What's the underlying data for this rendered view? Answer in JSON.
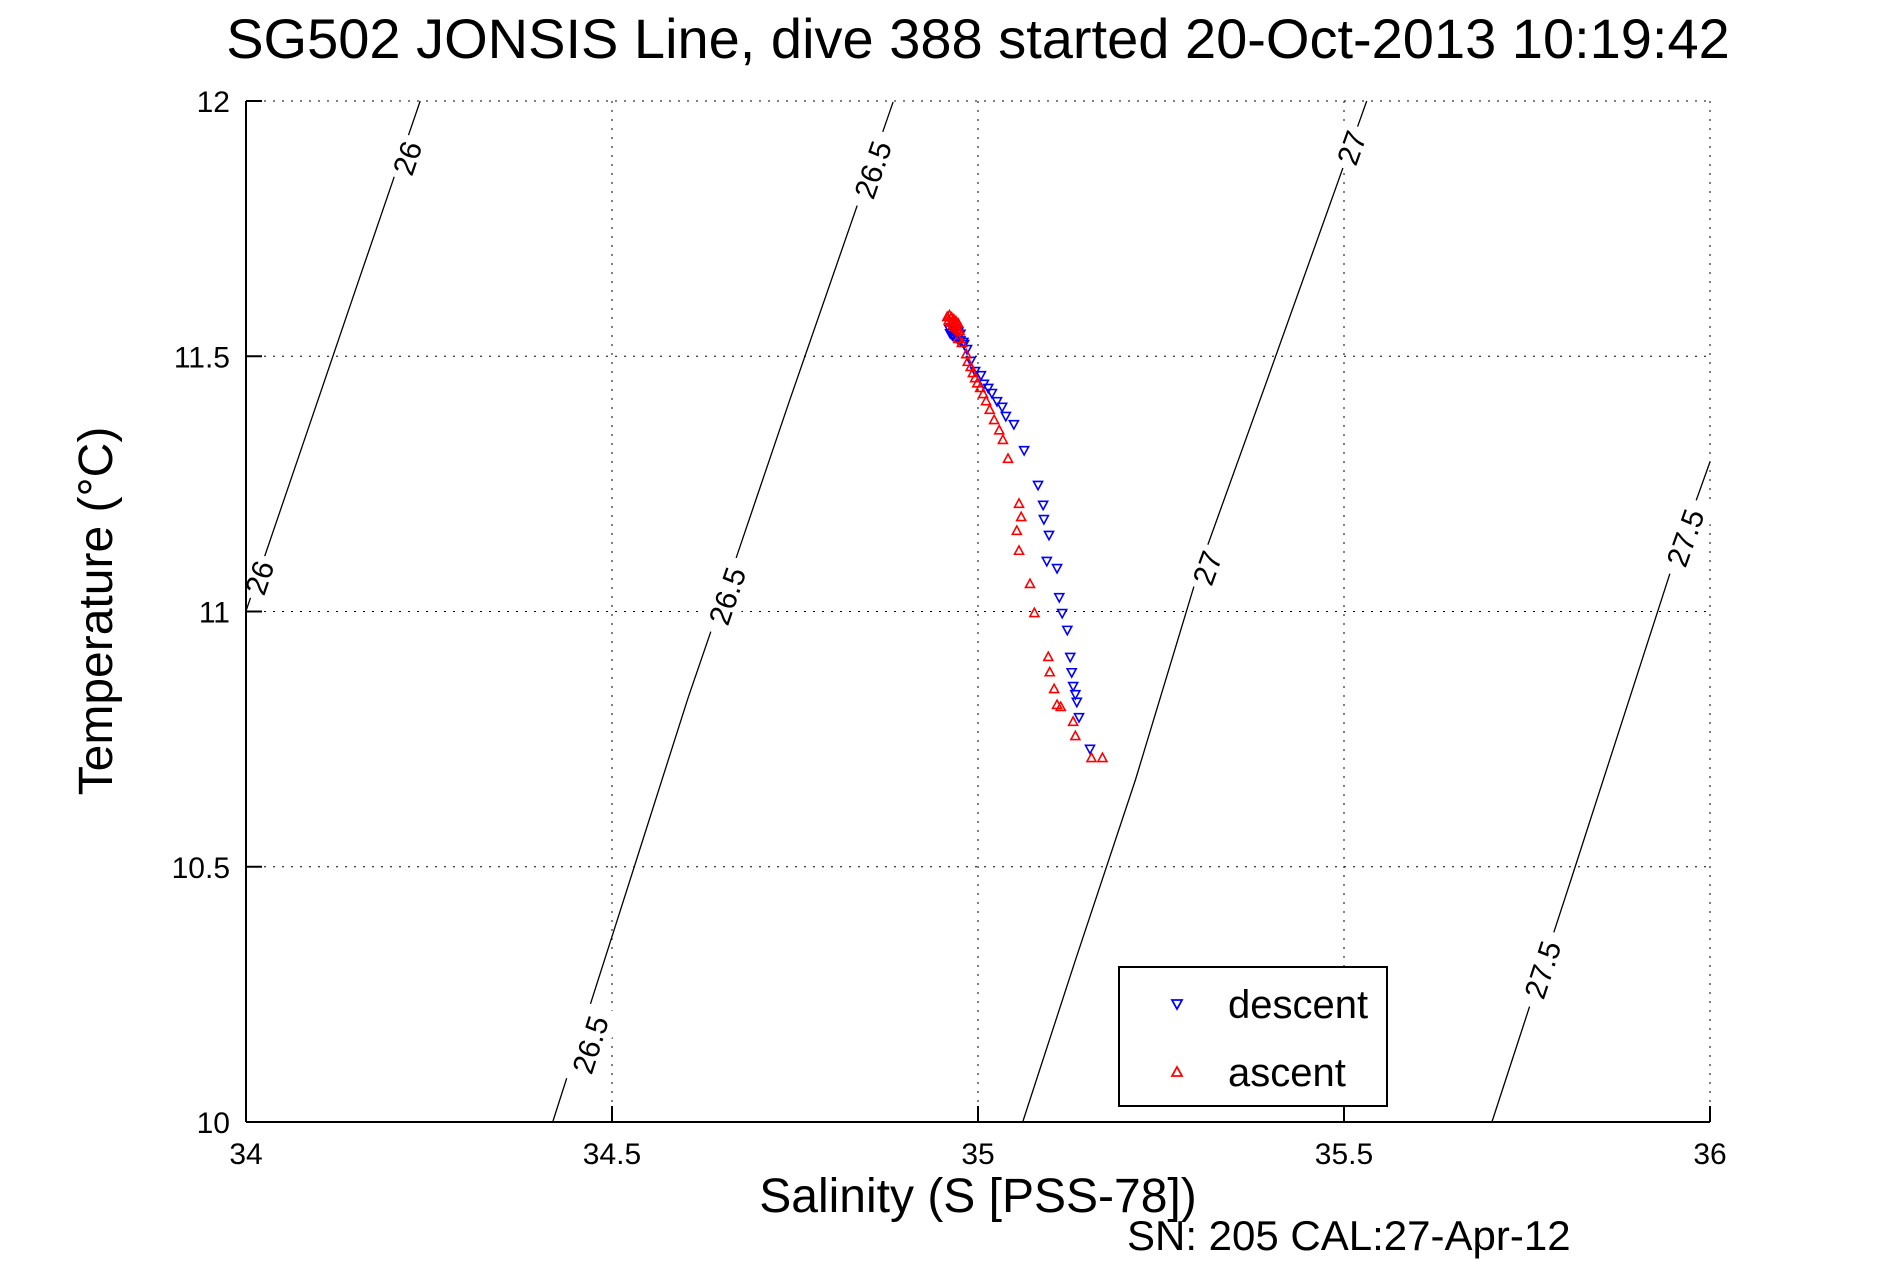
{
  "title": "SG502 JONSIS Line, dive 388 started 20-Oct-2013 10:19:42",
  "footer": {
    "sn_cal": "SN: 205  CAL:27-Apr-12"
  },
  "axes": {
    "x": {
      "label": "Salinity (S [PSS-78])",
      "range": [
        34,
        36
      ],
      "ticks": [
        {
          "v": 34,
          "label": "34"
        },
        {
          "v": 34.5,
          "label": "34.5"
        },
        {
          "v": 35,
          "label": "35"
        },
        {
          "v": 35.5,
          "label": "35.5"
        },
        {
          "v": 36,
          "label": "36"
        }
      ]
    },
    "y": {
      "label": "Temperature (°C)",
      "range": [
        10,
        12
      ],
      "ticks": [
        {
          "v": 10,
          "label": "10"
        },
        {
          "v": 10.5,
          "label": "10.5"
        },
        {
          "v": 11,
          "label": "11"
        },
        {
          "v": 11.5,
          "label": "11.5"
        },
        {
          "v": 12,
          "label": "12"
        }
      ]
    }
  },
  "legend": {
    "items": [
      {
        "label": "descent",
        "marker": "triangle-down",
        "color": "#0000ff"
      },
      {
        "label": "ascent",
        "marker": "triangle-up",
        "color": "#ff0000"
      }
    ]
  },
  "chart_data": {
    "type": "scatter",
    "title": "SG502 JONSIS Line, dive 388 started 20-Oct-2013 10:19:42",
    "xlabel": "Salinity (S [PSS-78])",
    "ylabel": "Temperature (°C)",
    "xlim": [
      34,
      36
    ],
    "ylim": [
      10,
      12
    ],
    "grid": true,
    "legend_position": "south-of-center-right",
    "series": [
      {
        "name": "descent",
        "marker": "triangle-down",
        "color": "#0000ff",
        "points": [
          [
            34.961,
            11.553
          ],
          [
            34.964,
            11.557
          ],
          [
            34.967,
            11.555
          ],
          [
            34.97,
            11.551
          ],
          [
            34.973,
            11.548
          ],
          [
            34.976,
            11.544
          ],
          [
            34.962,
            11.545
          ],
          [
            34.965,
            11.541
          ],
          [
            34.968,
            11.538
          ],
          [
            34.972,
            11.535
          ],
          [
            34.976,
            11.531
          ],
          [
            34.98,
            11.528
          ],
          [
            34.981,
            11.524
          ],
          [
            34.985,
            11.514
          ],
          [
            34.99,
            11.491
          ],
          [
            34.996,
            11.471
          ],
          [
            35.004,
            11.463
          ],
          [
            35.008,
            11.446
          ],
          [
            35.014,
            11.438
          ],
          [
            35.019,
            11.428
          ],
          [
            35.026,
            11.412
          ],
          [
            35.033,
            11.401
          ],
          [
            35.038,
            11.383
          ],
          [
            35.049,
            11.367
          ],
          [
            35.063,
            11.316
          ],
          [
            35.082,
            11.248
          ],
          [
            35.089,
            11.209
          ],
          [
            35.09,
            11.181
          ],
          [
            35.097,
            11.15
          ],
          [
            35.094,
            11.099
          ],
          [
            35.108,
            11.085
          ],
          [
            35.111,
            11.028
          ],
          [
            35.115,
            10.997
          ],
          [
            35.122,
            10.964
          ],
          [
            35.126,
            10.911
          ],
          [
            35.128,
            10.881
          ],
          [
            35.13,
            10.854
          ],
          [
            35.133,
            10.838
          ],
          [
            35.135,
            10.823
          ],
          [
            35.138,
            10.793
          ],
          [
            35.153,
            10.731
          ]
        ]
      },
      {
        "name": "ascent",
        "marker": "triangle-up",
        "color": "#ff0000",
        "points": [
          [
            34.958,
            11.577
          ],
          [
            34.961,
            11.58
          ],
          [
            34.964,
            11.576
          ],
          [
            34.967,
            11.572
          ],
          [
            34.97,
            11.568
          ],
          [
            34.973,
            11.564
          ],
          [
            34.96,
            11.57
          ],
          [
            34.963,
            11.566
          ],
          [
            34.966,
            11.561
          ],
          [
            34.969,
            11.557
          ],
          [
            34.972,
            11.553
          ],
          [
            34.975,
            11.549
          ],
          [
            34.973,
            11.534
          ],
          [
            34.978,
            11.526
          ],
          [
            34.984,
            11.504
          ],
          [
            34.986,
            11.489
          ],
          [
            34.99,
            11.479
          ],
          [
            34.993,
            11.467
          ],
          [
            34.996,
            11.457
          ],
          [
            34.999,
            11.447
          ],
          [
            35.003,
            11.438
          ],
          [
            35.007,
            11.426
          ],
          [
            35.011,
            11.412
          ],
          [
            35.016,
            11.395
          ],
          [
            35.022,
            11.375
          ],
          [
            35.029,
            11.355
          ],
          [
            35.034,
            11.336
          ],
          [
            35.041,
            11.299
          ],
          [
            35.056,
            11.211
          ],
          [
            35.059,
            11.185
          ],
          [
            35.053,
            11.158
          ],
          [
            35.056,
            11.119
          ],
          [
            35.071,
            11.054
          ],
          [
            35.077,
            10.997
          ],
          [
            35.096,
            10.911
          ],
          [
            35.098,
            10.881
          ],
          [
            35.104,
            10.848
          ],
          [
            35.108,
            10.817
          ],
          [
            35.113,
            10.813
          ],
          [
            35.13,
            10.784
          ],
          [
            35.133,
            10.756
          ],
          [
            35.155,
            10.713
          ],
          [
            35.17,
            10.713
          ]
        ]
      }
    ],
    "contours": [
      {
        "level": "26",
        "points": [
          [
            34.0,
            11.001
          ],
          [
            34.074,
            11.312
          ],
          [
            34.156,
            11.657
          ],
          [
            34.238,
            12.0
          ]
        ],
        "labels": [
          {
            "x": 34.019,
            "y": 11.066
          },
          {
            "x": 34.221,
            "y": 11.888
          }
        ]
      },
      {
        "level": "26.5",
        "points": [
          [
            34.419,
            10.0
          ],
          [
            34.511,
            10.413
          ],
          [
            34.604,
            10.831
          ],
          [
            34.671,
            11.111
          ],
          [
            34.743,
            11.415
          ],
          [
            34.884,
            11.998
          ]
        ],
        "labels": [
          {
            "x": 34.471,
            "y": 10.151
          },
          {
            "x": 34.658,
            "y": 11.03
          },
          {
            "x": 34.857,
            "y": 11.865
          }
        ]
      },
      {
        "level": "27",
        "points": [
          [
            35.061,
            10.0
          ],
          [
            35.133,
            10.317
          ],
          [
            35.215,
            10.67
          ],
          [
            35.303,
            11.087
          ],
          [
            35.395,
            11.453
          ],
          [
            35.499,
            11.871
          ],
          [
            35.531,
            12.0
          ]
        ],
        "labels": [
          {
            "x": 35.314,
            "y": 11.085
          },
          {
            "x": 35.511,
            "y": 11.908
          }
        ]
      },
      {
        "level": "27.5",
        "points": [
          [
            35.702,
            10.0
          ],
          [
            35.81,
            10.474
          ],
          [
            35.945,
            11.073
          ],
          [
            36.0,
            11.293
          ]
        ],
        "labels": [
          {
            "x": 35.772,
            "y": 10.298
          },
          {
            "x": 35.967,
            "y": 11.144
          }
        ]
      }
    ]
  }
}
